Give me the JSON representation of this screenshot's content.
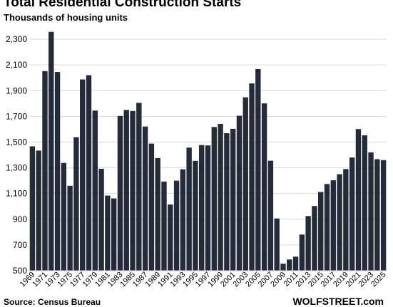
{
  "chart_data": {
    "type": "bar",
    "title": "Total Residential Construction Starts",
    "subtitle": "Thousands of housing units",
    "xlabel": "",
    "ylabel": "",
    "ylim": [
      500,
      2400
    ],
    "yticks": [
      500,
      700,
      900,
      1100,
      1300,
      1500,
      1700,
      1900,
      2100,
      2300
    ],
    "ytick_labels": [
      "500",
      "700",
      "900",
      "1,100",
      "1,300",
      "1,500",
      "1,700",
      "1,900",
      "2,100",
      "2,300"
    ],
    "grid": "horizontal",
    "legend": "none",
    "categories": [
      "1969",
      "1970",
      "1971",
      "1972",
      "1973",
      "1974",
      "1975",
      "1976",
      "1977",
      "1978",
      "1979",
      "1980",
      "1981",
      "1982",
      "1983",
      "1984",
      "1985",
      "1986",
      "1987",
      "1988",
      "1989",
      "1990",
      "1991",
      "1992",
      "1993",
      "1994",
      "1995",
      "1996",
      "1997",
      "1998",
      "1999",
      "2000",
      "2001",
      "2002",
      "2003",
      "2004",
      "2005",
      "2006",
      "2007",
      "2008",
      "2009",
      "2010",
      "2011",
      "2012",
      "2013",
      "2014",
      "2015",
      "2016",
      "2017",
      "2018",
      "2019",
      "2020",
      "2021",
      "2022",
      "2023",
      "2024",
      "2025"
    ],
    "xtick_labels": [
      "1969",
      "1971",
      "1973",
      "1975",
      "1977",
      "1979",
      "1981",
      "1983",
      "1985",
      "1987",
      "1989",
      "1991",
      "1993",
      "1995",
      "1997",
      "1999",
      "2001",
      "2003",
      "2005",
      "2007",
      "2009",
      "2011",
      "2013",
      "2015",
      "2017",
      "2019",
      "2021",
      "2023",
      "2025"
    ],
    "values": [
      1467,
      1434,
      2052,
      2357,
      2045,
      1338,
      1160,
      1538,
      1987,
      2020,
      1745,
      1292,
      1084,
      1062,
      1703,
      1750,
      1742,
      1805,
      1621,
      1488,
      1376,
      1193,
      1014,
      1200,
      1288,
      1457,
      1354,
      1477,
      1474,
      1617,
      1641,
      1569,
      1603,
      1705,
      1848,
      1956,
      2068,
      1801,
      1355,
      906,
      554,
      587,
      609,
      781,
      925,
      1003,
      1112,
      1174,
      1203,
      1250,
      1290,
      1380,
      1601,
      1553,
      1420,
      1367,
      1360
    ],
    "bar_color": "#252b38",
    "grid_color": "#d9d9d9"
  },
  "footer": {
    "source": "Source: Census Bureau",
    "brand": "WOLFSTREET.com"
  }
}
